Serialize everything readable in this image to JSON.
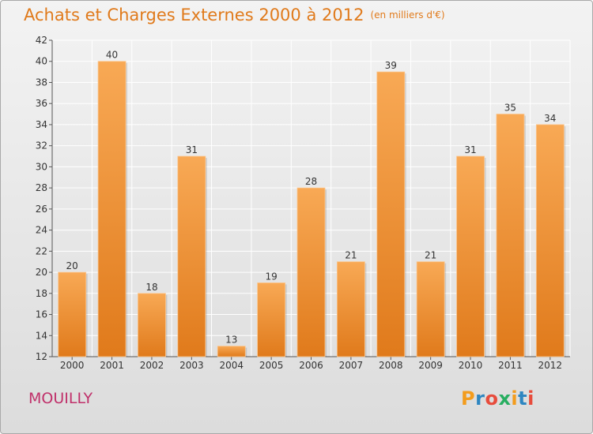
{
  "title": "Achats et Charges Externes 2000 à 2012",
  "subtitle": "(en milliers d'€)",
  "place": "MOUILLY",
  "logo": {
    "letters": [
      "P",
      "r",
      "o",
      "x",
      "i",
      "t",
      "i"
    ],
    "colors": [
      "#f39c1d",
      "#2e86c1",
      "#e74c3c",
      "#27ae60",
      "#f39c1d",
      "#2e86c1",
      "#e74c3c"
    ]
  },
  "colors": {
    "bar_light": "#f8a955",
    "bar_dark": "#e07a1b",
    "title": "#e07a1b",
    "place": "#c0306a"
  },
  "chart_data": {
    "type": "bar",
    "categories": [
      "2000",
      "2001",
      "2002",
      "2003",
      "2004",
      "2005",
      "2006",
      "2007",
      "2008",
      "2009",
      "2010",
      "2011",
      "2012"
    ],
    "values": [
      20,
      40,
      18,
      31,
      13,
      19,
      28,
      21,
      39,
      21,
      31,
      35,
      34
    ],
    "yticks": [
      12,
      14,
      16,
      18,
      20,
      22,
      24,
      26,
      28,
      30,
      32,
      34,
      36,
      38,
      40,
      42
    ],
    "ylim": [
      12,
      42
    ],
    "grid": true,
    "data_labels": true
  }
}
